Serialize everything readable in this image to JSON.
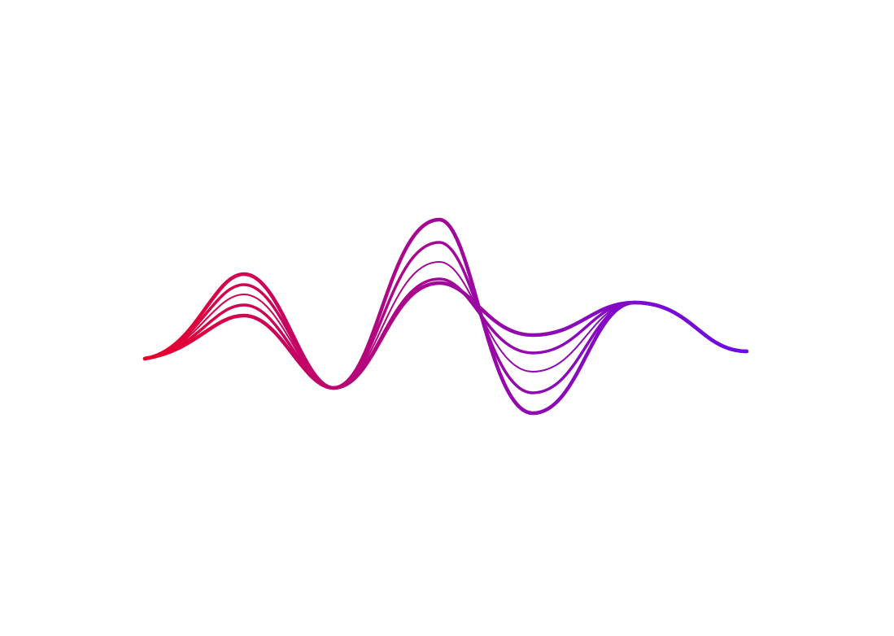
{
  "graphic": {
    "colors": {
      "start": "#e8002a",
      "middle": "#a0089a",
      "end": "#6a0ce8",
      "background": "#ffffff"
    },
    "wave_count": 5
  }
}
